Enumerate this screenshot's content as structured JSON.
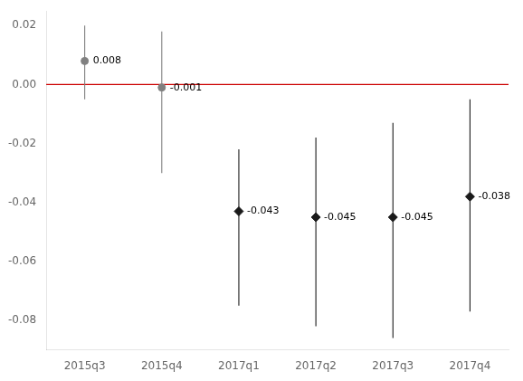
{
  "chart_data": {
    "type": "errorbar",
    "categories": [
      "2015q3",
      "2015q4",
      "2017q1",
      "2017q2",
      "2017q3",
      "2017q4"
    ],
    "series": [
      {
        "color": "#808080",
        "marker": "circle",
        "values": [
          0.008,
          -0.001,
          null,
          null,
          null,
          null
        ],
        "ci_lower": [
          -0.005,
          -0.03,
          null,
          null,
          null,
          null
        ],
        "ci_upper": [
          0.02,
          0.018,
          null,
          null,
          null,
          null
        ]
      },
      {
        "color": "#1a1a1a",
        "marker": "diamond",
        "values": [
          null,
          null,
          -0.043,
          -0.045,
          -0.045,
          -0.038
        ],
        "ci_lower": [
          null,
          null,
          -0.075,
          -0.082,
          -0.086,
          -0.077
        ],
        "ci_upper": [
          null,
          null,
          -0.022,
          -0.018,
          -0.013,
          -0.005
        ]
      }
    ],
    "hline": {
      "y": 0,
      "color": "#cc0000"
    },
    "ylim": [
      -0.09,
      0.025
    ],
    "yticks": [
      -0.08,
      -0.06,
      -0.04,
      -0.02,
      {
        "value": 0,
        "label": "0.00"
      },
      0.02
    ],
    "grid": false,
    "data_labels": true
  }
}
